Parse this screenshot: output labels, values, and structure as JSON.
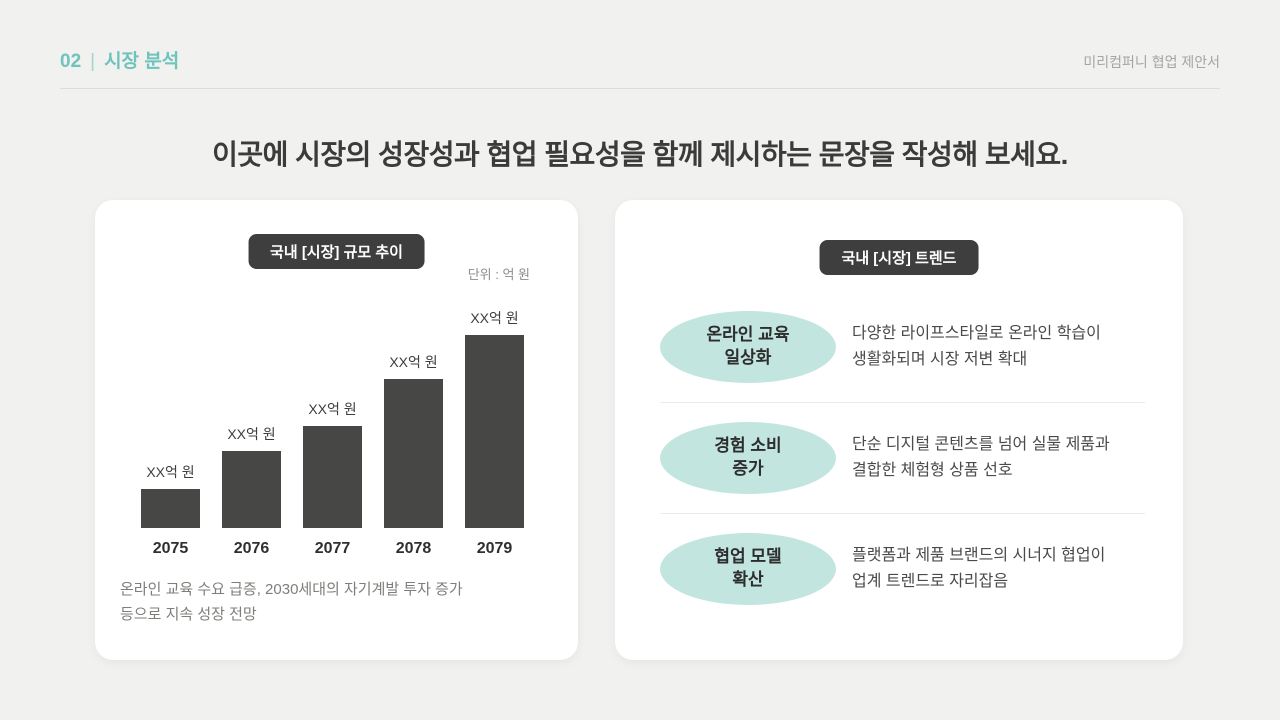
{
  "header": {
    "section_number": "02",
    "separator": "|",
    "section_title": "시장 분석",
    "doc_title": "미리컴퍼니 협업 제안서",
    "accent_color": "#6fc3bd"
  },
  "title": "이곳에 시장의 성장성과 협업 필요성을 함께 제시하는 문장을 작성해 보세요.",
  "left_card": {
    "badge": "국내 [시장] 규모 추이",
    "unit_label": "단위 : 억 원",
    "caption": "온라인 교육 수요 급증, 2030세대의 자기계발 투자 증가\n등으로 지속 성장 전망"
  },
  "chart_data": {
    "type": "bar",
    "title": "국내 [시장] 규모 추이",
    "unit_label": "단위 : 억 원",
    "categories": [
      "2075",
      "2076",
      "2077",
      "2078",
      "2079"
    ],
    "value_labels": [
      "XX억 원",
      "XX억 원",
      "XX억 원",
      "XX억 원",
      "XX억 원"
    ],
    "values_relative": [
      0.2,
      0.4,
      0.53,
      0.77,
      1.0
    ],
    "bar_color": "#474745",
    "legend": "none",
    "grid": false
  },
  "right_card": {
    "badge": "국내 [시장] 트렌드",
    "pill_color": "#c2e5e0",
    "items": [
      {
        "label": "온라인 교육\n일상화",
        "desc": "다양한 라이프스타일로 온라인 학습이\n생활화되며 시장 저변 확대"
      },
      {
        "label": "경험 소비\n증가",
        "desc": "단순 디지털 콘텐츠를 넘어 실물 제품과\n결합한 체험형 상품 선호"
      },
      {
        "label": "협업 모델\n확산",
        "desc": "플랫폼과 제품 브랜드의 시너지 협업이\n업계 트렌드로 자리잡음"
      }
    ]
  }
}
